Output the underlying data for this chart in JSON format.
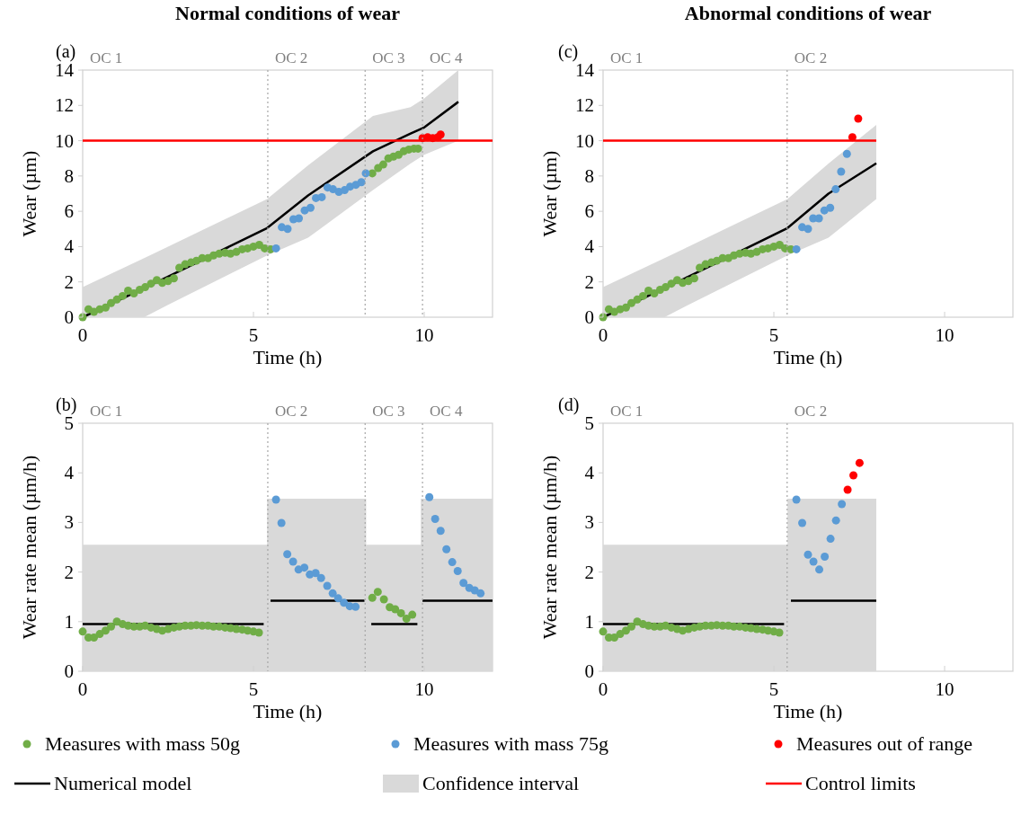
{
  "chart_data": [
    {
      "type": "scatter",
      "title": "Normal conditions of wear",
      "xlabel": "Time (h)",
      "ylabel": "Wear (µm)",
      "annotations": [
        "(a)",
        "OC 1",
        "Confidence interval"
      ],
      "xlim": [
        0,
        12
      ],
      "xticks": [
        0,
        5,
        10
      ],
      "ylim": [
        0,
        14
      ],
      "yticks": [
        0,
        2,
        4,
        6,
        8,
        10,
        12,
        14
      ],
      "legend": "bottom",
      "series": [
        {
          "name": "Measures with mass 50g",
          "type": "scatter",
          "marker": "circle",
          "color": "#70ad47",
          "x": [
            0,
            0.17,
            0.33,
            0.5,
            0.67,
            0.83,
            1,
            1.17,
            1.33,
            1.5,
            1.67,
            1.83,
            2,
            2.17,
            2.33,
            2.5,
            2.67,
            2.83,
            3,
            3.17,
            3.33,
            3.5,
            3.67,
            3.83,
            4,
            4.17,
            4.33,
            4.5,
            4.67,
            4.83,
            5,
            5.17,
            5.33,
            5.5,
            8.48,
            8.65,
            8.8,
            8.95,
            9.1,
            9.25,
            9.4,
            9.55,
            9.7,
            9.82
          ],
          "values": [
            0,
            0.45,
            0.3,
            0.45,
            0.55,
            0.8,
            1.0,
            1.2,
            1.5,
            1.35,
            1.55,
            1.7,
            1.9,
            2.1,
            1.95,
            2.05,
            2.2,
            2.8,
            3.0,
            3.1,
            3.2,
            3.35,
            3.35,
            3.5,
            3.6,
            3.65,
            3.6,
            3.7,
            3.85,
            3.9,
            4.0,
            4.1,
            3.9,
            3.85,
            8.15,
            8.45,
            8.65,
            9.0,
            9.1,
            9.2,
            9.4,
            9.5,
            9.55,
            9.55
          ]
        },
        {
          "name": "Measures with mass 75g",
          "type": "scatter",
          "marker": "circle",
          "color": "#5b9bd5",
          "x": [
            5.66,
            5.83,
            6.0,
            6.17,
            6.33,
            6.5,
            6.67,
            6.83,
            7.0,
            7.17,
            7.33,
            7.5,
            7.67,
            7.83,
            8.0,
            8.16,
            8.29
          ],
          "values": [
            3.9,
            5.1,
            5.0,
            5.55,
            5.6,
            6.05,
            6.2,
            6.75,
            6.8,
            7.35,
            7.25,
            7.1,
            7.2,
            7.4,
            7.5,
            7.65,
            8.15
          ]
        },
        {
          "name": "Measures out of range",
          "type": "scatter",
          "marker": "circle",
          "color": "#ff0000",
          "x": [
            9.95,
            10.1,
            10.25,
            10.4,
            10.48
          ],
          "values": [
            10.15,
            10.2,
            10.15,
            10.2,
            10.35
          ]
        },
        {
          "name": "Numerical model",
          "type": "line",
          "color": "#000000",
          "x": [
            0,
            1.8,
            2.5,
            5.4,
            6.6,
            8.5,
            9.6,
            10,
            11
          ],
          "values": [
            0,
            1.65,
            2.3,
            5.05,
            6.9,
            9.4,
            10.4,
            10.75,
            12.2
          ],
          "lower": [
            0,
            0,
            0.7,
            3.5,
            4.5,
            7.2,
            8.7,
            9.2,
            10
          ],
          "upper": [
            1.7,
            3.35,
            4.0,
            6.7,
            8.6,
            11.4,
            11.9,
            12.4,
            14
          ]
        },
        {
          "name": "Control limits",
          "type": "line",
          "color": "#ff0000",
          "x": [
            0,
            12
          ],
          "values": [
            10,
            10
          ]
        }
      ],
      "ref_lines": [
        {
          "axis": "x",
          "value": 5.42,
          "label": "OC 2",
          "color": "#a6a6a6",
          "line_style": "dotted"
        },
        {
          "axis": "x",
          "value": 8.27,
          "label": "OC 3",
          "color": "#a6a6a6",
          "line_style": "dotted"
        },
        {
          "axis": "x",
          "value": 9.95,
          "label": "OC 4",
          "color": "#a6a6a6",
          "line_style": "dotted"
        }
      ]
    },
    {
      "type": "scatter",
      "title": "Abnormal conditions of wear",
      "xlabel": "Time (h)",
      "ylabel": "Wear (µm)",
      "annotations": [
        "(c)",
        "OC 1"
      ],
      "xlim": [
        0,
        12
      ],
      "xticks": [
        0,
        5,
        10
      ],
      "ylim": [
        0,
        14
      ],
      "yticks": [
        0,
        2,
        4,
        6,
        8,
        10,
        12,
        14
      ],
      "series": [
        {
          "type": "scatter",
          "marker": "circle",
          "color": "#70ad47",
          "x": [
            0,
            0.17,
            0.33,
            0.5,
            0.67,
            0.83,
            1,
            1.17,
            1.33,
            1.5,
            1.67,
            1.83,
            2,
            2.17,
            2.33,
            2.5,
            2.67,
            2.83,
            3,
            3.17,
            3.33,
            3.5,
            3.67,
            3.83,
            4,
            4.17,
            4.33,
            4.5,
            4.67,
            4.83,
            5,
            5.17,
            5.33,
            5.5
          ],
          "values": [
            0,
            0.45,
            0.3,
            0.45,
            0.55,
            0.8,
            1.0,
            1.2,
            1.5,
            1.35,
            1.55,
            1.7,
            1.9,
            2.1,
            1.95,
            2.05,
            2.2,
            2.8,
            3.0,
            3.1,
            3.2,
            3.35,
            3.35,
            3.5,
            3.6,
            3.65,
            3.6,
            3.7,
            3.85,
            3.9,
            4.0,
            4.1,
            3.9,
            3.85
          ]
        },
        {
          "type": "scatter",
          "marker": "circle",
          "color": "#5b9bd5",
          "x": [
            5.66,
            5.83,
            6.0,
            6.15,
            6.32,
            6.48,
            6.65,
            6.81,
            6.97,
            7.14
          ],
          "values": [
            3.85,
            5.1,
            5.0,
            5.6,
            5.6,
            6.05,
            6.2,
            7.25,
            8.25,
            9.25
          ]
        },
        {
          "type": "scatter",
          "marker": "circle",
          "color": "#ff0000",
          "x": [
            7.3,
            7.47
          ],
          "values": [
            10.2,
            11.25
          ]
        },
        {
          "type": "line",
          "color": "#000000",
          "x": [
            0,
            1.8,
            2.5,
            5.4,
            6.6,
            8
          ],
          "values": [
            0,
            1.65,
            2.3,
            5.05,
            7.0,
            8.72
          ],
          "lower": [
            0,
            0,
            0.7,
            3.5,
            4.5,
            6.7
          ],
          "upper": [
            1.7,
            3.35,
            4.0,
            6.7,
            8.7,
            10.9
          ]
        },
        {
          "type": "line",
          "color": "#ff0000",
          "x": [
            0,
            8
          ],
          "values": [
            10,
            10
          ]
        }
      ],
      "ref_lines": [
        {
          "axis": "x",
          "value": 5.39,
          "label": "OC 2",
          "color": "#a6a6a6",
          "line_style": "dotted"
        }
      ]
    },
    {
      "type": "scatter",
      "xlabel": "Time (h)",
      "ylabel": "Wear rate mean (µm/h)",
      "annotations": [
        "(b)",
        "OC 1"
      ],
      "xlim": [
        0,
        12
      ],
      "xticks": [
        0,
        5,
        10
      ],
      "ylim": [
        0,
        5
      ],
      "yticks": [
        0,
        1,
        2,
        3,
        4,
        5
      ],
      "series": [
        {
          "type": "scatter",
          "marker": "circle",
          "color": "#70ad47",
          "x": [
            0,
            0.17,
            0.33,
            0.5,
            0.67,
            0.83,
            1,
            1.17,
            1.33,
            1.5,
            1.67,
            1.83,
            2,
            2.17,
            2.33,
            2.5,
            2.67,
            2.83,
            3,
            3.17,
            3.33,
            3.5,
            3.67,
            3.83,
            4,
            4.17,
            4.33,
            4.5,
            4.67,
            4.83,
            5,
            5.16,
            8.48,
            8.64,
            8.82,
            8.99,
            9.15,
            9.32,
            9.48,
            9.65
          ],
          "values": [
            0.8,
            0.68,
            0.68,
            0.75,
            0.82,
            0.9,
            1.0,
            0.95,
            0.92,
            0.9,
            0.9,
            0.92,
            0.88,
            0.85,
            0.82,
            0.85,
            0.88,
            0.9,
            0.92,
            0.92,
            0.93,
            0.92,
            0.92,
            0.9,
            0.9,
            0.88,
            0.87,
            0.85,
            0.84,
            0.82,
            0.8,
            0.78,
            1.48,
            1.6,
            1.45,
            1.29,
            1.25,
            1.17,
            1.06,
            1.14
          ]
        },
        {
          "type": "scatter",
          "marker": "circle",
          "color": "#5b9bd5",
          "x": [
            5.66,
            5.82,
            5.99,
            6.16,
            6.32,
            6.49,
            6.65,
            6.82,
            6.98,
            7.16,
            7.32,
            7.48,
            7.65,
            7.82,
            7.99,
            10.15,
            10.32,
            10.48,
            10.65,
            10.82,
            10.98,
            11.15,
            11.32,
            11.48,
            11.65
          ],
          "values": [
            3.46,
            2.99,
            2.36,
            2.21,
            2.05,
            2.09,
            1.95,
            1.98,
            1.88,
            1.72,
            1.57,
            1.47,
            1.38,
            1.31,
            1.3,
            3.51,
            3.07,
            2.83,
            2.46,
            2.2,
            2.02,
            1.78,
            1.68,
            1.63,
            1.57
          ]
        },
        {
          "type": "line",
          "color": "#000000",
          "x": [
            0,
            5.3,
            5.4,
            5.4,
            5.5,
            8.25,
            8.3,
            8.3,
            8.45,
            9.8,
            9.9,
            9.9,
            9.95,
            12
          ],
          "values": [
            0.95,
            0.95,
            null,
            null,
            1.42,
            1.42,
            null,
            null,
            0.95,
            0.95,
            null,
            null,
            1.42,
            1.42
          ],
          "lower": [
            0,
            0,
            0,
            0,
            0,
            0,
            0,
            0,
            0,
            0,
            0,
            0,
            0,
            0
          ],
          "upper": [
            2.55,
            2.55,
            2.55,
            3.48,
            3.48,
            3.48,
            3.48,
            2.55,
            2.55,
            2.55,
            2.55,
            3.48,
            3.48,
            3.48
          ]
        }
      ],
      "ref_lines": [
        {
          "axis": "x",
          "value": 5.42,
          "label": "OC 2",
          "color": "#a6a6a6",
          "line_style": "dotted"
        },
        {
          "axis": "x",
          "value": 8.27,
          "label": "OC 3",
          "color": "#a6a6a6",
          "line_style": "dotted"
        },
        {
          "axis": "x",
          "value": 9.95,
          "label": "OC 4",
          "color": "#a6a6a6",
          "line_style": "dotted"
        }
      ]
    },
    {
      "type": "scatter",
      "xlabel": "Time (h)",
      "ylabel": "Wear rate mean (µm/h)",
      "annotations": [
        "(d)",
        "OC 1"
      ],
      "xlim": [
        0,
        12
      ],
      "xticks": [
        0,
        5,
        10
      ],
      "ylim": [
        0,
        5
      ],
      "yticks": [
        0,
        1,
        2,
        3,
        4,
        5
      ],
      "series": [
        {
          "type": "scatter",
          "marker": "circle",
          "color": "#70ad47",
          "x": [
            0,
            0.17,
            0.33,
            0.5,
            0.67,
            0.83,
            1,
            1.17,
            1.33,
            1.5,
            1.67,
            1.83,
            2,
            2.17,
            2.33,
            2.5,
            2.67,
            2.83,
            3,
            3.17,
            3.33,
            3.5,
            3.67,
            3.83,
            4,
            4.17,
            4.33,
            4.5,
            4.67,
            4.83,
            5,
            5.16
          ],
          "values": [
            0.8,
            0.68,
            0.68,
            0.75,
            0.82,
            0.9,
            1.0,
            0.95,
            0.92,
            0.9,
            0.9,
            0.92,
            0.88,
            0.85,
            0.82,
            0.85,
            0.88,
            0.9,
            0.92,
            0.92,
            0.93,
            0.92,
            0.92,
            0.9,
            0.9,
            0.88,
            0.87,
            0.85,
            0.84,
            0.82,
            0.8,
            0.78
          ]
        },
        {
          "type": "scatter",
          "marker": "circle",
          "color": "#5b9bd5",
          "x": [
            5.66,
            5.83,
            6.0,
            6.16,
            6.33,
            6.49,
            6.66,
            6.82,
            6.99
          ],
          "values": [
            3.46,
            2.99,
            2.35,
            2.21,
            2.05,
            2.31,
            2.67,
            3.04,
            3.37
          ]
        },
        {
          "type": "scatter",
          "marker": "circle",
          "color": "#ff0000",
          "x": [
            7.16,
            7.33,
            7.51
          ],
          "values": [
            3.66,
            3.95,
            4.2
          ]
        },
        {
          "type": "line",
          "color": "#000000",
          "x": [
            0,
            5.3,
            5.4,
            5.4,
            5.5,
            8
          ],
          "values": [
            0.95,
            0.95,
            null,
            null,
            1.42,
            1.42
          ],
          "lower": [
            0,
            0,
            0,
            0,
            0,
            0
          ],
          "upper": [
            2.55,
            2.55,
            2.55,
            3.48,
            3.48,
            3.48
          ]
        }
      ],
      "ref_lines": [
        {
          "axis": "x",
          "value": 5.39,
          "label": "OC 2",
          "color": "#a6a6a6",
          "line_style": "dotted"
        }
      ]
    }
  ]
}
